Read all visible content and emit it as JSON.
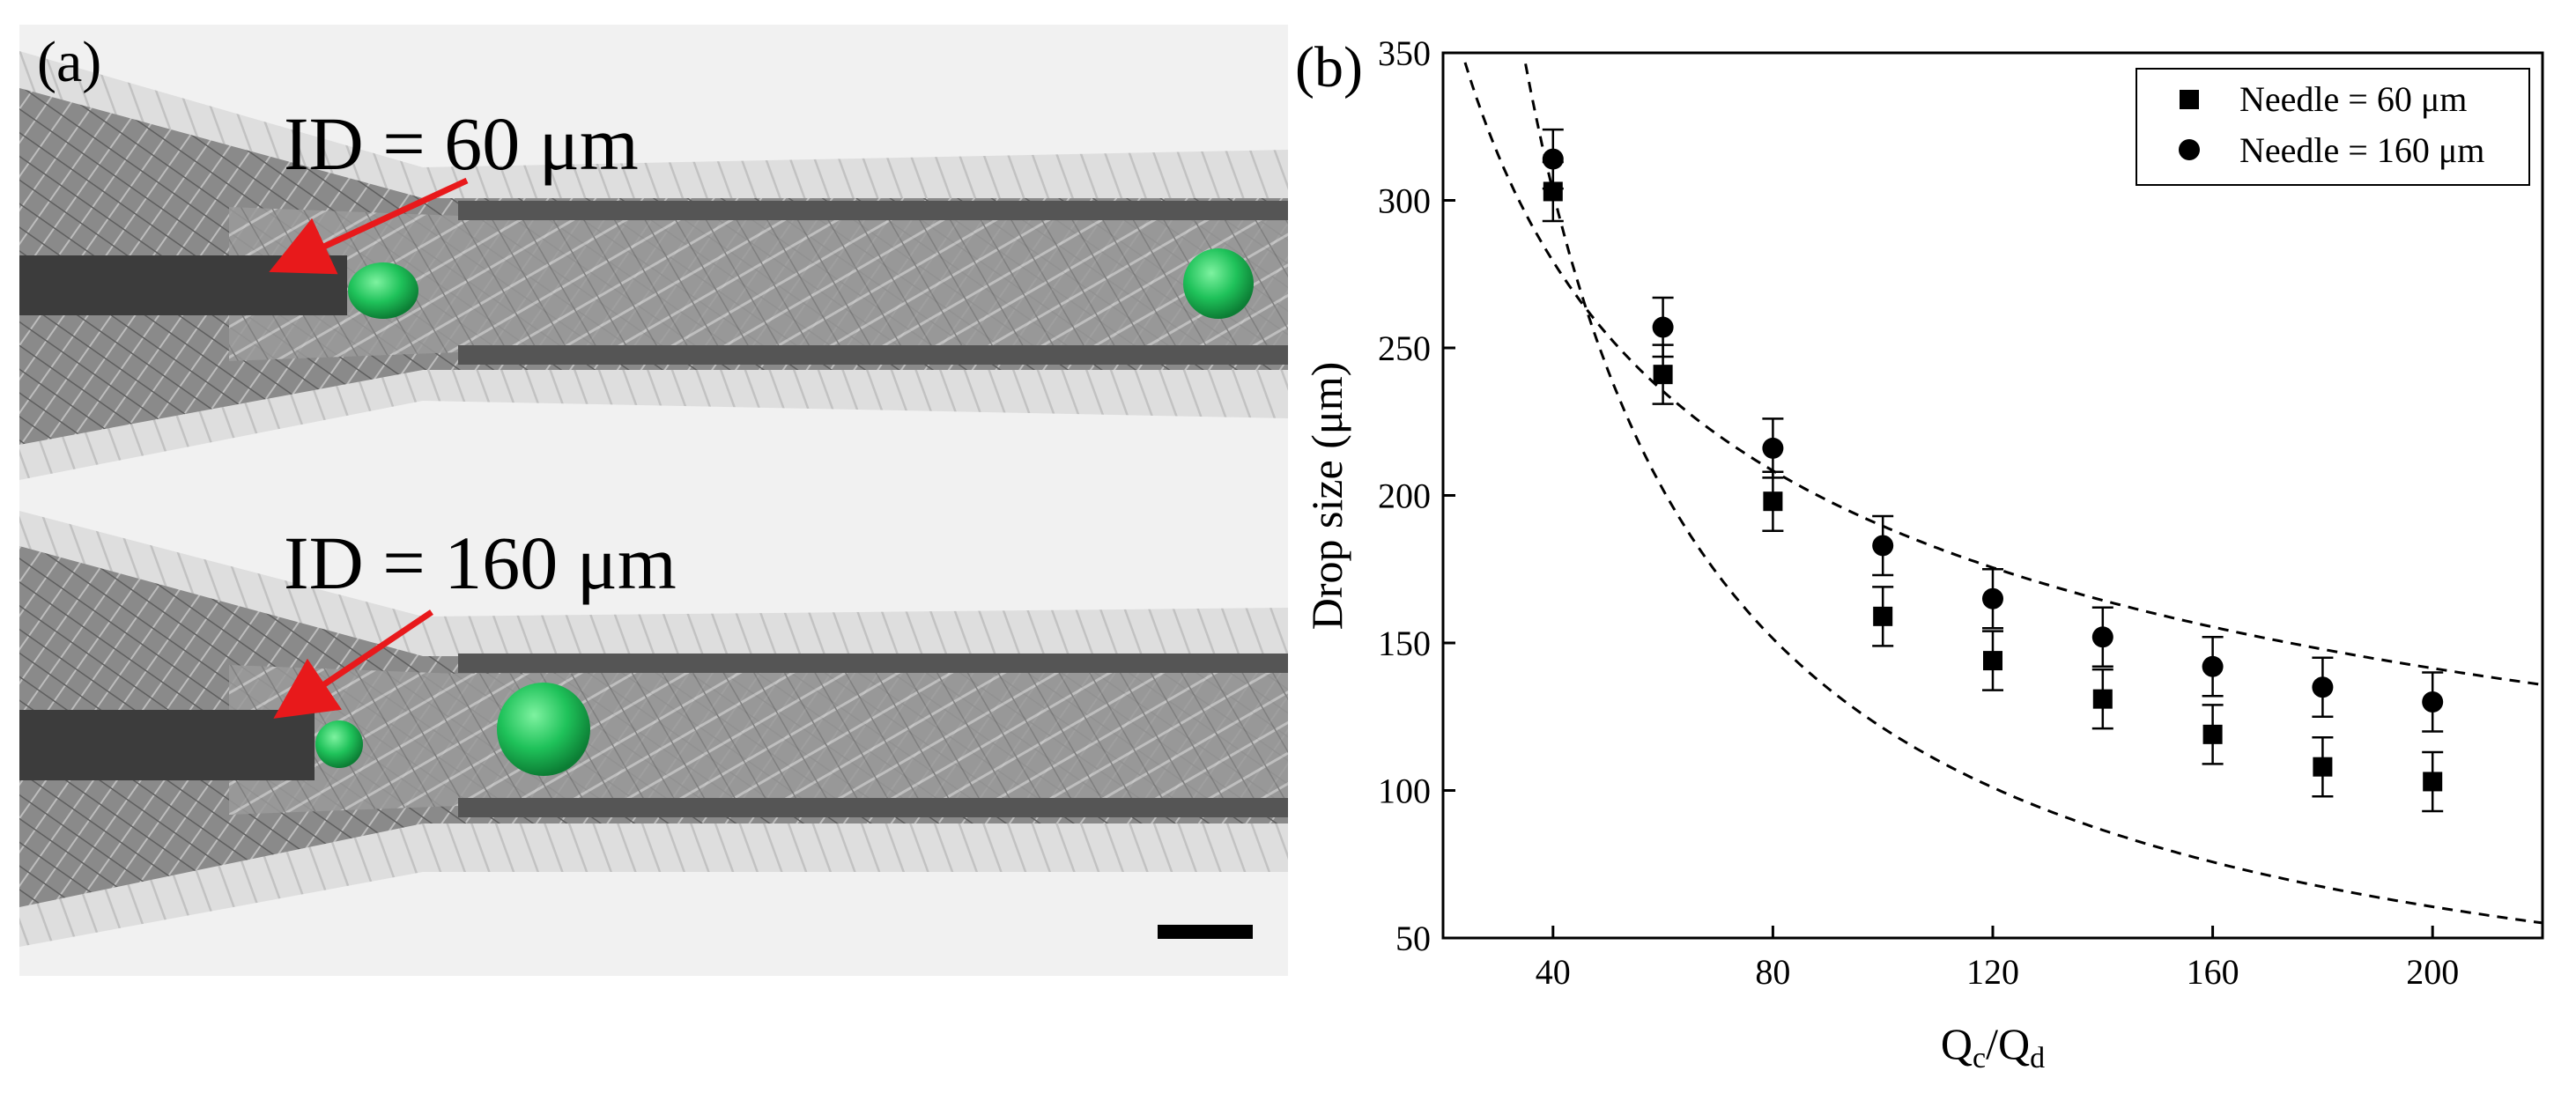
{
  "panel_a": {
    "label": "(a)",
    "top_annotation": "ID = 60 μm",
    "bottom_annotation": "ID = 160 μm",
    "colors": {
      "droplet": "#1fc25a",
      "arrow": "#e8191b",
      "channel": "#6d6d6d",
      "needle": "#3c3c3c"
    }
  },
  "chart_data": {
    "type": "scatter",
    "panel_label": "(b)",
    "xlabel_main": "Q",
    "xlabel_sub1": "c",
    "xlabel_mid": "/Q",
    "xlabel_sub2": "d",
    "ylabel": "Drop size (μm)",
    "xlim": [
      20,
      220
    ],
    "ylim": [
      50,
      350
    ],
    "xticks": [
      40,
      80,
      120,
      160,
      200
    ],
    "yticks": [
      50,
      100,
      150,
      200,
      250,
      300,
      350
    ],
    "legend_position": "top-right",
    "grid": false,
    "x": [
      40,
      60,
      80,
      100,
      120,
      140,
      160,
      180,
      200
    ],
    "series": [
      {
        "name": "Needle = 60 μm",
        "marker": "square",
        "values": [
          303,
          241,
          198,
          159,
          144,
          131,
          119,
          108,
          103
        ],
        "error": [
          10,
          10,
          10,
          10,
          10,
          10,
          10,
          10,
          10
        ],
        "fit_curve": {
          "style": "dashed",
          "A": 12120,
          "x_range": [
            20,
            220
          ]
        }
      },
      {
        "name": "Needle = 160 μm",
        "marker": "circle",
        "values": [
          314,
          257,
          216,
          183,
          165,
          152,
          142,
          135,
          130
        ],
        "error": [
          10,
          10,
          10,
          10,
          10,
          10,
          10,
          10,
          10
        ],
        "fit_curve": {
          "style": "dashed",
          "A": 1330,
          "B": 0.423,
          "x_range": [
            20,
            220
          ]
        }
      }
    ]
  }
}
